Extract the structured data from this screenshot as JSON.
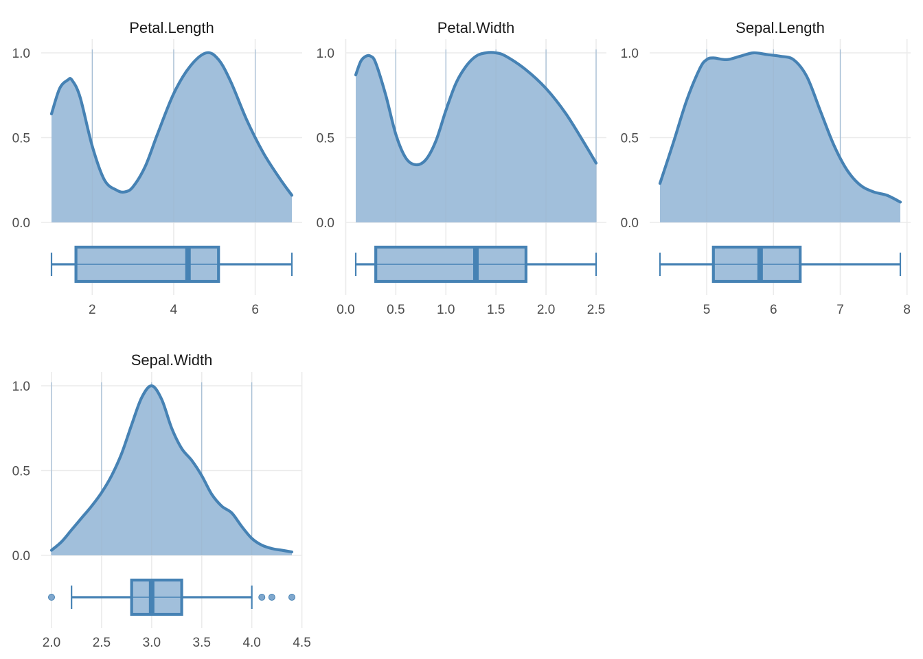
{
  "colors": {
    "line": "#4682b4",
    "fill": "#a1bfdb",
    "grid": "#ebebeb",
    "outlier": "#7fa7cd"
  },
  "chart_data": [
    {
      "type": "area",
      "title": "Petal.Length",
      "xlim": [
        1.0,
        6.9
      ],
      "ylim": [
        0,
        1.0
      ],
      "x_ticks": [
        2,
        4,
        6
      ],
      "x_tick_labels": [
        "2",
        "4",
        "6"
      ],
      "y_ticks": [
        0.0,
        0.5,
        1.0
      ],
      "y_tick_labels": [
        "0.0",
        "0.5",
        "1.0"
      ],
      "density": {
        "x": [
          1.0,
          1.2,
          1.4,
          1.5,
          1.7,
          2.0,
          2.3,
          2.6,
          2.8,
          3.0,
          3.3,
          3.6,
          4.0,
          4.4,
          4.8,
          5.1,
          5.4,
          5.8,
          6.2,
          6.6,
          6.9
        ],
        "y": [
          0.64,
          0.79,
          0.84,
          0.84,
          0.74,
          0.45,
          0.25,
          0.19,
          0.18,
          0.21,
          0.33,
          0.52,
          0.76,
          0.92,
          1.0,
          0.96,
          0.83,
          0.6,
          0.41,
          0.26,
          0.16
        ]
      },
      "box": {
        "whisker_low": 1.0,
        "q1": 1.6,
        "median": 4.35,
        "q3": 5.1,
        "whisker_high": 6.9,
        "outliers": []
      }
    },
    {
      "type": "area",
      "title": "Petal.Width",
      "xlim": [
        0.1,
        2.5
      ],
      "ylim": [
        0,
        1.0
      ],
      "x_ticks": [
        0.0,
        0.5,
        1.0,
        1.5,
        2.0,
        2.5
      ],
      "x_tick_labels": [
        "0.0",
        "0.5",
        "1.0",
        "1.5",
        "2.0",
        "2.5"
      ],
      "y_ticks": [
        0.0,
        0.5,
        1.0
      ],
      "y_tick_labels": [
        "0.0",
        "0.5",
        "1.0"
      ],
      "density": {
        "x": [
          0.1,
          0.15,
          0.2,
          0.25,
          0.3,
          0.4,
          0.5,
          0.6,
          0.7,
          0.8,
          0.9,
          1.0,
          1.1,
          1.2,
          1.3,
          1.4,
          1.5,
          1.6,
          1.8,
          2.0,
          2.2,
          2.4,
          2.5
        ],
        "y": [
          0.87,
          0.95,
          0.98,
          0.98,
          0.94,
          0.75,
          0.52,
          0.38,
          0.34,
          0.37,
          0.48,
          0.66,
          0.82,
          0.92,
          0.98,
          1.0,
          1.0,
          0.98,
          0.9,
          0.79,
          0.64,
          0.45,
          0.35
        ]
      },
      "box": {
        "whisker_low": 0.1,
        "q1": 0.3,
        "median": 1.3,
        "q3": 1.8,
        "whisker_high": 2.5,
        "outliers": []
      }
    },
    {
      "type": "area",
      "title": "Sepal.Length",
      "xlim": [
        4.3,
        7.9
      ],
      "ylim": [
        0,
        1.0
      ],
      "x_ticks": [
        5,
        6,
        7,
        8
      ],
      "x_tick_labels": [
        "5",
        "6",
        "7",
        "8"
      ],
      "y_ticks": [
        0.0,
        0.5,
        1.0
      ],
      "y_tick_labels": [
        "0.0",
        "0.5",
        "1.0"
      ],
      "density": {
        "x": [
          4.3,
          4.5,
          4.7,
          4.9,
          5.0,
          5.1,
          5.3,
          5.5,
          5.7,
          5.9,
          6.1,
          6.3,
          6.5,
          6.7,
          6.9,
          7.1,
          7.3,
          7.5,
          7.7,
          7.9
        ],
        "y": [
          0.23,
          0.47,
          0.72,
          0.91,
          0.96,
          0.97,
          0.96,
          0.98,
          1.0,
          0.99,
          0.98,
          0.96,
          0.86,
          0.66,
          0.46,
          0.31,
          0.22,
          0.18,
          0.16,
          0.12
        ]
      },
      "box": {
        "whisker_low": 4.3,
        "q1": 5.1,
        "median": 5.8,
        "q3": 6.4,
        "whisker_high": 7.9,
        "outliers": []
      }
    },
    {
      "type": "area",
      "title": "Sepal.Width",
      "xlim": [
        2.0,
        4.4
      ],
      "ylim": [
        0,
        1.0
      ],
      "x_ticks": [
        2.0,
        2.5,
        3.0,
        3.5,
        4.0,
        4.5
      ],
      "x_tick_labels": [
        "2.0",
        "2.5",
        "3.0",
        "3.5",
        "4.0",
        "4.5"
      ],
      "y_ticks": [
        0.0,
        0.5,
        1.0
      ],
      "y_tick_labels": [
        "0.0",
        "0.5",
        "1.0"
      ],
      "density": {
        "x": [
          2.0,
          2.1,
          2.2,
          2.3,
          2.4,
          2.5,
          2.6,
          2.7,
          2.8,
          2.9,
          3.0,
          3.1,
          3.2,
          3.3,
          3.4,
          3.5,
          3.6,
          3.7,
          3.8,
          3.9,
          4.0,
          4.1,
          4.2,
          4.3,
          4.4
        ],
        "y": [
          0.03,
          0.08,
          0.15,
          0.22,
          0.29,
          0.37,
          0.47,
          0.6,
          0.77,
          0.93,
          1.0,
          0.92,
          0.75,
          0.63,
          0.56,
          0.47,
          0.36,
          0.29,
          0.25,
          0.17,
          0.1,
          0.06,
          0.04,
          0.03,
          0.02
        ]
      },
      "box": {
        "whisker_low": 2.2,
        "q1": 2.8,
        "median": 3.0,
        "q3": 3.3,
        "whisker_high": 4.0,
        "outliers": [
          2.0,
          4.1,
          4.2,
          4.4
        ]
      }
    }
  ]
}
